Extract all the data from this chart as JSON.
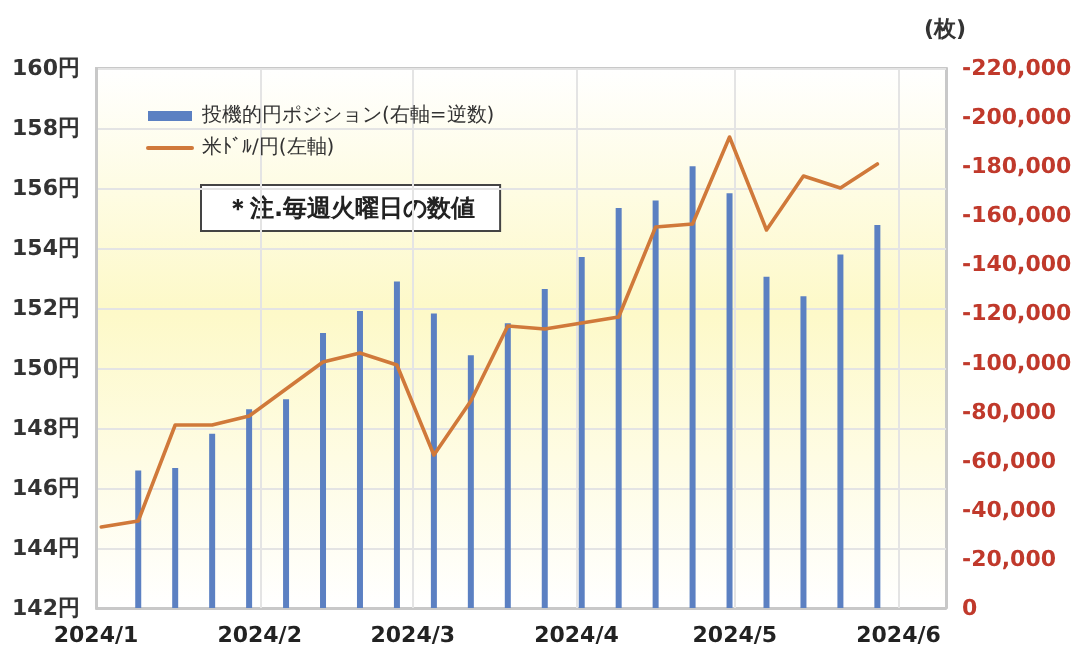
{
  "chart_data": {
    "type": "bar",
    "y2label": "(枚)",
    "annotations": [
      "＊注.毎週火曜日の数値"
    ],
    "x": [
      "2024-01-02",
      "2024-01-09",
      "2024-01-16",
      "2024-01-23",
      "2024-01-30",
      "2024-02-06",
      "2024-02-13",
      "2024-02-20",
      "2024-02-27",
      "2024-03-05",
      "2024-03-12",
      "2024-03-19",
      "2024-03-26",
      "2024-04-02",
      "2024-04-09",
      "2024-04-16",
      "2024-04-23",
      "2024-04-30",
      "2024-05-07",
      "2024-05-14",
      "2024-05-21",
      "2024-05-28"
    ],
    "series": [
      {
        "name": "投機的円ポジション(右軸=逆数)",
        "axis": "y2",
        "color": "#5b80c2",
        "values": [
          null,
          -56000,
          -57000,
          -71000,
          -81000,
          -85000,
          -112000,
          -121000,
          -133000,
          -120000,
          -103000,
          -116000,
          -130000,
          -143000,
          -163000,
          -166000,
          -180000,
          -169000,
          -135000,
          -127000,
          -144000,
          -156000
        ]
      },
      {
        "name": "米ﾄﾞﾙ/円(左軸)",
        "type": "line",
        "color": "#d0793a",
        "values": [
          144.7,
          144.9,
          148.1,
          148.1,
          148.4,
          149.3,
          150.2,
          150.5,
          150.1,
          147.1,
          148.9,
          151.4,
          151.3,
          151.5,
          151.7,
          154.7,
          154.8,
          157.7,
          154.6,
          156.4,
          156.0,
          156.8
        ]
      }
    ],
    "xlim": [
      "2024-01-01",
      "2024-06-10"
    ],
    "xticks": [
      {
        "value": "2024-01-01",
        "label": "2024/1"
      },
      {
        "value": "2024-02-01",
        "label": "2024/2"
      },
      {
        "value": "2024-03-01",
        "label": "2024/3"
      },
      {
        "value": "2024-04-01",
        "label": "2024/4"
      },
      {
        "value": "2024-05-01",
        "label": "2024/5"
      },
      {
        "value": "2024-06-01",
        "label": "2024/6"
      }
    ],
    "ylim": [
      142,
      160
    ],
    "yticks": [
      {
        "value": 142,
        "label": "142円"
      },
      {
        "value": 144,
        "label": "144円"
      },
      {
        "value": 146,
        "label": "146円"
      },
      {
        "value": 148,
        "label": "148円"
      },
      {
        "value": 150,
        "label": "150円"
      },
      {
        "value": 152,
        "label": "152円"
      },
      {
        "value": 154,
        "label": "154円"
      },
      {
        "value": 156,
        "label": "156円"
      },
      {
        "value": 158,
        "label": "158円"
      },
      {
        "value": 160,
        "label": "160円"
      }
    ],
    "y2lim": [
      0,
      -220000
    ],
    "y2ticks": [
      0,
      {
        "value": -20000,
        "label": "-20,000"
      },
      {
        "value": -40000,
        "label": "-40,000"
      },
      {
        "value": -60000,
        "label": "-60,000"
      },
      {
        "value": -80000,
        "label": "-80,000"
      },
      {
        "value": -100000,
        "label": "-100,000"
      },
      {
        "value": -120000,
        "label": "-120,000"
      },
      {
        "value": -140000,
        "label": "-140,000"
      },
      {
        "value": -160000,
        "label": "-160,000"
      },
      {
        "value": -180000,
        "label": "-180,000"
      },
      {
        "value": -200000,
        "label": "-200,000"
      },
      {
        "value": -220000,
        "label": "-220,000"
      }
    ],
    "grid": true,
    "legend": "top left",
    "marker": "none",
    "line_style": "solid"
  }
}
